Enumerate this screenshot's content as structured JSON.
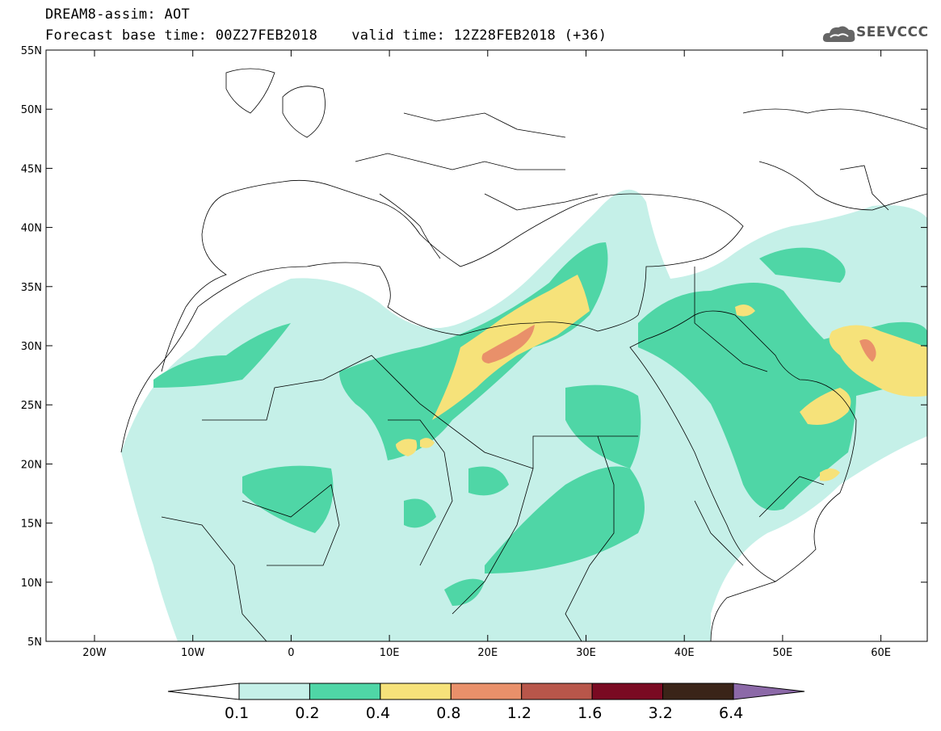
{
  "header": {
    "line1": "DREAM8-assim: AOT",
    "line2": "Forecast base time: 00Z27FEB2018    valid time: 12Z28FEB2018 (+36)",
    "logo_text": "SEEVCCC"
  },
  "axes": {
    "lat_labels": [
      "55N",
      "50N",
      "45N",
      "40N",
      "35N",
      "30N",
      "25N",
      "20N",
      "15N",
      "10N",
      "5N"
    ],
    "lon_labels": [
      "20W",
      "10W",
      "0",
      "10E",
      "20E",
      "30E",
      "40E",
      "50E",
      "60E"
    ]
  },
  "colorbar": {
    "labels": [
      "0.1",
      "0.2",
      "0.4",
      "0.8",
      "1.2",
      "1.6",
      "3.2",
      "6.4"
    ],
    "colors": [
      "#ffffff",
      "#c5f0e8",
      "#4fd6a6",
      "#f6e27a",
      "#e9906a",
      "#b8564a",
      "#7a0a22",
      "#3a2418",
      "#8c69a8"
    ]
  },
  "map_colors": {
    "level1": "#c5f0e8",
    "level2": "#4fd6a6",
    "level3": "#f6e27a",
    "level4": "#e9906a"
  }
}
